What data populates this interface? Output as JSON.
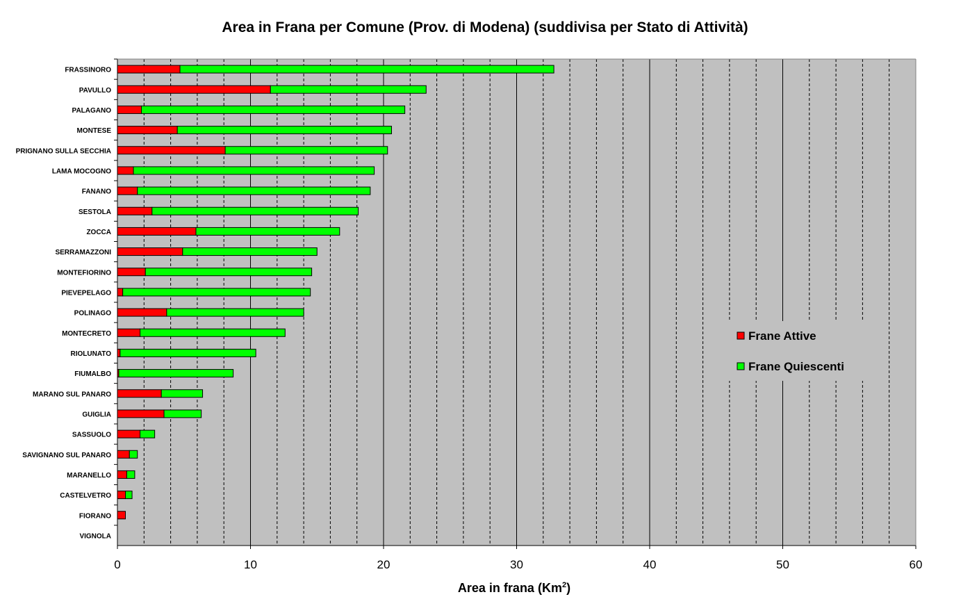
{
  "chart_data": {
    "type": "bar",
    "orientation": "horizontal",
    "stacked": true,
    "title": "Area in Frana per Comune (Prov. di Modena) (suddivisa per Stato di Attività)",
    "xlabel": "Area in frana (Km",
    "xlabel_sup": "2",
    "xlabel_close": ")",
    "xlim": [
      0,
      60
    ],
    "xticks": [
      0,
      10,
      20,
      30,
      40,
      50,
      60
    ],
    "minor_gridlines_every": 2,
    "grid": true,
    "background_color": "#c0c0c0",
    "legend_position": "right",
    "categories": [
      "FRASSINORO",
      "PAVULLO",
      "PALAGANO",
      "MONTESE",
      "PRIGNANO SULLA SECCHIA",
      "LAMA MOCOGNO",
      "FANANO",
      "SESTOLA",
      "ZOCCA",
      "SERRAMAZZONI",
      "MONTEFIORINO",
      "PIEVEPELAGO",
      "POLINAGO",
      "MONTECRETO",
      "RIOLUNATO",
      "FIUMALBO",
      "MARANO SUL PANARO",
      "GUIGLIA",
      "SASSUOLO",
      "SAVIGNANO SUL PANARO",
      "MARANELLO",
      "CASTELVETRO",
      "FIORANO",
      "VIGNOLA"
    ],
    "series": [
      {
        "name": "Frane Attive",
        "color": "#ff0000",
        "values": [
          4.7,
          11.5,
          1.8,
          4.5,
          8.1,
          1.2,
          1.5,
          2.6,
          5.9,
          4.9,
          2.1,
          0.4,
          3.7,
          1.7,
          0.2,
          0.1,
          3.3,
          3.5,
          1.7,
          0.9,
          0.7,
          0.6,
          0.6,
          0.0
        ]
      },
      {
        "name": "Frane Quiescenti",
        "color": "#00ff00",
        "values": [
          28.1,
          11.7,
          19.8,
          16.1,
          12.2,
          18.1,
          17.5,
          15.5,
          10.8,
          10.1,
          12.5,
          14.1,
          10.3,
          10.9,
          10.2,
          8.6,
          3.1,
          2.8,
          1.1,
          0.6,
          0.6,
          0.5,
          0.0,
          0.0
        ]
      }
    ]
  }
}
